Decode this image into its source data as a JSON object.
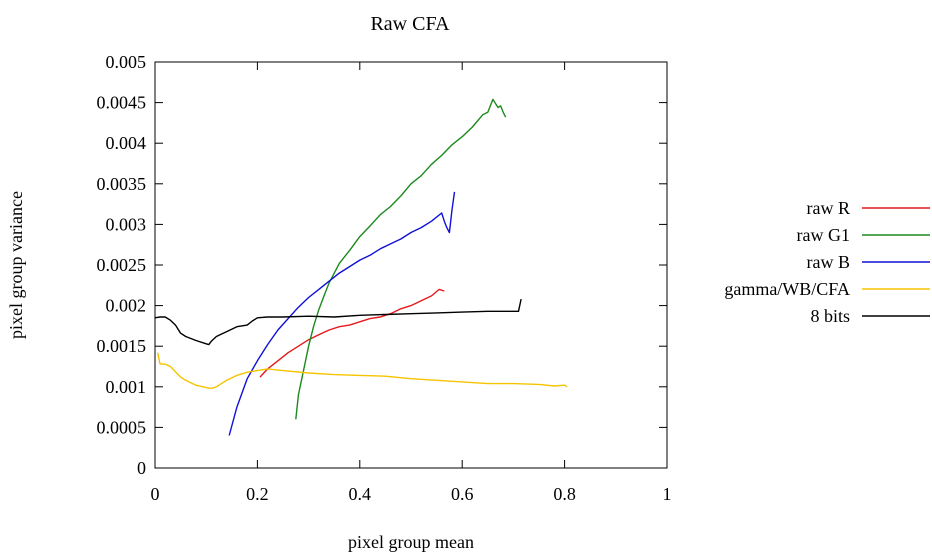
{
  "chart_data": {
    "type": "line",
    "title": "Raw CFA",
    "xlabel": "pixel group mean",
    "ylabel": "pixel group variance",
    "xlim": [
      0,
      1
    ],
    "ylim": [
      0,
      0.005
    ],
    "xticks": [
      "0",
      "0.2",
      "0.4",
      "0.6",
      "0.8",
      "1"
    ],
    "xtick_values": [
      0,
      0.2,
      0.4,
      0.6,
      0.8,
      1
    ],
    "yticks": [
      "0",
      "0.0005",
      "0.001",
      "0.0015",
      "0.002",
      "0.0025",
      "0.003",
      "0.0035",
      "0.004",
      "0.0045",
      "0.005"
    ],
    "ytick_values": [
      0,
      0.0005,
      0.001,
      0.0015,
      0.002,
      0.0025,
      0.003,
      0.0035,
      0.004,
      0.0045,
      0.005
    ],
    "grid": false,
    "legend_position": "right",
    "series": [
      {
        "name": "raw R",
        "color": "#e41a1c",
        "x": [
          0.205,
          0.22,
          0.24,
          0.26,
          0.28,
          0.3,
          0.32,
          0.34,
          0.36,
          0.38,
          0.4,
          0.42,
          0.44,
          0.46,
          0.48,
          0.5,
          0.52,
          0.54,
          0.555,
          0.565
        ],
        "y": [
          0.00112,
          0.00122,
          0.00132,
          0.00142,
          0.0015,
          0.00158,
          0.00164,
          0.0017,
          0.00174,
          0.00176,
          0.0018,
          0.00184,
          0.00186,
          0.0019,
          0.00196,
          0.002,
          0.00206,
          0.00212,
          0.0022,
          0.00218
        ]
      },
      {
        "name": "raw G1",
        "color": "#1b8a1b",
        "x": [
          0.275,
          0.28,
          0.29,
          0.3,
          0.31,
          0.32,
          0.33,
          0.34,
          0.36,
          0.38,
          0.4,
          0.42,
          0.44,
          0.46,
          0.48,
          0.5,
          0.52,
          0.54,
          0.56,
          0.58,
          0.6,
          0.62,
          0.64,
          0.65,
          0.66,
          0.67,
          0.675,
          0.68,
          0.685
        ],
        "y": [
          0.0006,
          0.0009,
          0.0012,
          0.0015,
          0.00175,
          0.00195,
          0.00212,
          0.00228,
          0.00252,
          0.00268,
          0.00285,
          0.00298,
          0.00312,
          0.00322,
          0.00335,
          0.0035,
          0.0036,
          0.00374,
          0.00385,
          0.00398,
          0.00408,
          0.0042,
          0.00435,
          0.00438,
          0.00454,
          0.00444,
          0.00446,
          0.00438,
          0.00432
        ]
      },
      {
        "name": "raw B",
        "color": "#1010d8",
        "x": [
          0.145,
          0.16,
          0.18,
          0.2,
          0.22,
          0.24,
          0.26,
          0.28,
          0.3,
          0.32,
          0.34,
          0.36,
          0.38,
          0.4,
          0.42,
          0.44,
          0.46,
          0.48,
          0.5,
          0.52,
          0.54,
          0.56,
          0.565,
          0.57,
          0.575,
          0.58,
          0.585
        ],
        "y": [
          0.0004,
          0.00075,
          0.0011,
          0.00132,
          0.00152,
          0.0017,
          0.00184,
          0.00198,
          0.0021,
          0.0022,
          0.0023,
          0.0024,
          0.00248,
          0.00256,
          0.00262,
          0.0027,
          0.00276,
          0.00282,
          0.0029,
          0.00296,
          0.00304,
          0.00314,
          0.00304,
          0.00296,
          0.0029,
          0.00318,
          0.0034
        ]
      },
      {
        "name": "gamma/WB/CFA",
        "color": "#f5c400",
        "x": [
          0.005,
          0.01,
          0.02,
          0.03,
          0.05,
          0.06,
          0.08,
          0.1,
          0.11,
          0.12,
          0.14,
          0.16,
          0.18,
          0.2,
          0.22,
          0.25,
          0.3,
          0.35,
          0.4,
          0.45,
          0.5,
          0.55,
          0.6,
          0.65,
          0.7,
          0.75,
          0.78,
          0.8,
          0.805
        ],
        "y": [
          0.00142,
          0.00128,
          0.00128,
          0.00125,
          0.00112,
          0.00108,
          0.00102,
          0.00099,
          0.00098,
          0.001,
          0.00108,
          0.00114,
          0.00118,
          0.0012,
          0.00122,
          0.0012,
          0.00117,
          0.00115,
          0.00114,
          0.00113,
          0.0011,
          0.00108,
          0.00106,
          0.00104,
          0.00104,
          0.00103,
          0.00101,
          0.00102,
          0.001
        ]
      },
      {
        "name": "8 bits",
        "color": "#000000",
        "x": [
          0.0,
          0.01,
          0.02,
          0.03,
          0.04,
          0.05,
          0.06,
          0.08,
          0.1,
          0.105,
          0.11,
          0.12,
          0.13,
          0.14,
          0.16,
          0.18,
          0.19,
          0.2,
          0.22,
          0.25,
          0.3,
          0.35,
          0.4,
          0.45,
          0.5,
          0.55,
          0.6,
          0.65,
          0.7,
          0.71,
          0.715
        ],
        "y": [
          0.00185,
          0.00186,
          0.00186,
          0.00182,
          0.00176,
          0.00166,
          0.00162,
          0.00157,
          0.00153,
          0.00152,
          0.00156,
          0.00162,
          0.00165,
          0.00168,
          0.00174,
          0.00176,
          0.00181,
          0.00185,
          0.00186,
          0.00186,
          0.00187,
          0.00186,
          0.00188,
          0.00189,
          0.0019,
          0.00191,
          0.00192,
          0.00193,
          0.00193,
          0.00193,
          0.00208
        ]
      }
    ]
  }
}
